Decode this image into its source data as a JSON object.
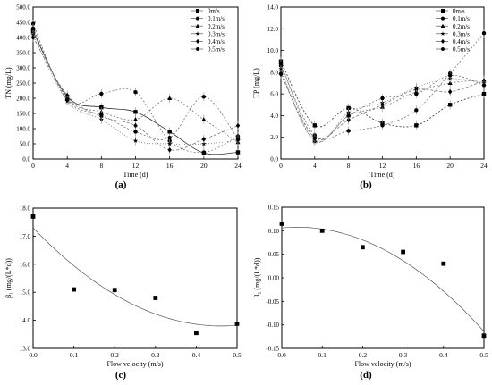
{
  "chart_data": [
    {
      "panel_label": "(a)",
      "type": "line",
      "title": "",
      "xlabel": "Time (d)",
      "ylabel": "TN (mg/L)",
      "xlim": [
        0,
        24
      ],
      "ylim": [
        0,
        500
      ],
      "x_ticks": [
        "0",
        "4",
        "8",
        "12",
        "16",
        "20",
        "24"
      ],
      "y_ticks": [
        "0.0",
        "50.0",
        "100.0",
        "150.0",
        "200.0",
        "250.0",
        "300.0",
        "350.0",
        "400.0",
        "450.0",
        "500.0"
      ],
      "legend_position": "top-right",
      "x": [
        0,
        4,
        8,
        12,
        16,
        20,
        24
      ],
      "series": [
        {
          "name": "0m/s",
          "marker": "square",
          "values": [
            420,
            205,
            170,
            155,
            90,
            20,
            22
          ]
        },
        {
          "name": "0.1m/s",
          "marker": "circle",
          "values": [
            445,
            195,
            215,
            220,
            60,
            22,
            75
          ]
        },
        {
          "name": "0.2m/s",
          "marker": "triangle",
          "values": [
            430,
            200,
            155,
            130,
            200,
            130,
            55
          ]
        },
        {
          "name": "0.3m/s",
          "marker": "star",
          "values": [
            410,
            190,
            130,
            60,
            50,
            50,
            60
          ]
        },
        {
          "name": "0.4m/s",
          "marker": "diamond",
          "values": [
            400,
            210,
            140,
            110,
            30,
            65,
            110
          ]
        },
        {
          "name": "0.5m/s",
          "marker": "hexagon",
          "values": [
            430,
            195,
            145,
            90,
            70,
            205,
            65
          ]
        }
      ]
    },
    {
      "panel_label": "(b)",
      "type": "line",
      "title": "",
      "xlabel": "Time (d)",
      "ylabel": "TP (mg/L)",
      "xlim": [
        0,
        24
      ],
      "ylim": [
        0,
        14
      ],
      "x_ticks": [
        "0",
        "4",
        "8",
        "12",
        "16",
        "20",
        "24"
      ],
      "y_ticks": [
        "0.0",
        "2.0",
        "4.0",
        "6.0",
        "8.0",
        "10.0",
        "12.0",
        "14.0"
      ],
      "legend_position": "top-right",
      "x": [
        0,
        4,
        8,
        12,
        16,
        20,
        24
      ],
      "series": [
        {
          "name": "0m/s",
          "marker": "square",
          "values": [
            9.0,
            3.1,
            4.7,
            3.3,
            3.1,
            5.0,
            6.0
          ]
        },
        {
          "name": "0.1m/s",
          "marker": "circle",
          "values": [
            8.6,
            2.2,
            2.6,
            3.1,
            4.5,
            7.9,
            11.6
          ]
        },
        {
          "name": "0.2m/s",
          "marker": "triangle",
          "values": [
            8.0,
            1.7,
            4.0,
            4.8,
            6.2,
            7.0,
            7.3
          ]
        },
        {
          "name": "0.3m/s",
          "marker": "star",
          "values": [
            8.3,
            1.6,
            4.3,
            5.2,
            6.6,
            7.4,
            7.0
          ]
        },
        {
          "name": "0.4m/s",
          "marker": "diamond",
          "values": [
            7.8,
            2.0,
            3.6,
            5.0,
            6.4,
            6.2,
            7.2
          ]
        },
        {
          "name": "0.5m/s",
          "marker": "hexagon",
          "values": [
            8.8,
            1.9,
            4.0,
            5.6,
            6.0,
            7.7,
            6.8
          ]
        }
      ]
    },
    {
      "panel_label": "(c)",
      "type": "scatter",
      "title": "",
      "xlabel": "Flow velocity (m/s)",
      "ylabel": "β₁ (mg/(L*d))",
      "xlim": [
        0,
        0.5
      ],
      "ylim": [
        13,
        18
      ],
      "x_ticks": [
        "0.0",
        "0.1",
        "0.2",
        "0.3",
        "0.4",
        "0.5"
      ],
      "y_ticks": [
        "13.0",
        "14.0",
        "15.0",
        "16.0",
        "17.0",
        "18.0"
      ],
      "x": [
        0,
        0.1,
        0.2,
        0.3,
        0.4,
        0.5
      ],
      "values": [
        17.7,
        15.1,
        15.08,
        14.8,
        13.55,
        13.88
      ],
      "fit": {
        "type": "quadratic",
        "coefficients": [
          17.3,
          -15.2,
          16.5
        ]
      }
    },
    {
      "panel_label": "(d)",
      "type": "scatter",
      "title": "",
      "xlabel": "Flow velocity (m/s)",
      "ylabel": "β₂ (mg/(L*d))",
      "xlim": [
        0,
        0.5
      ],
      "ylim": [
        -0.15,
        0.15
      ],
      "x_ticks": [
        "0.0",
        "0.1",
        "0.2",
        "0.3",
        "0.4",
        "0.5"
      ],
      "y_ticks": [
        "-0.15",
        "-0.10",
        "-0.05",
        "0.00",
        "0.05",
        "0.10",
        "0.15"
      ],
      "x": [
        0,
        0.1,
        0.2,
        0.3,
        0.4,
        0.5
      ],
      "values": [
        0.115,
        0.1,
        0.065,
        0.055,
        0.03,
        -0.123
      ],
      "fit": {
        "type": "quadratic",
        "coefficients": [
          0.106,
          0.08,
          -1.04
        ]
      }
    }
  ]
}
